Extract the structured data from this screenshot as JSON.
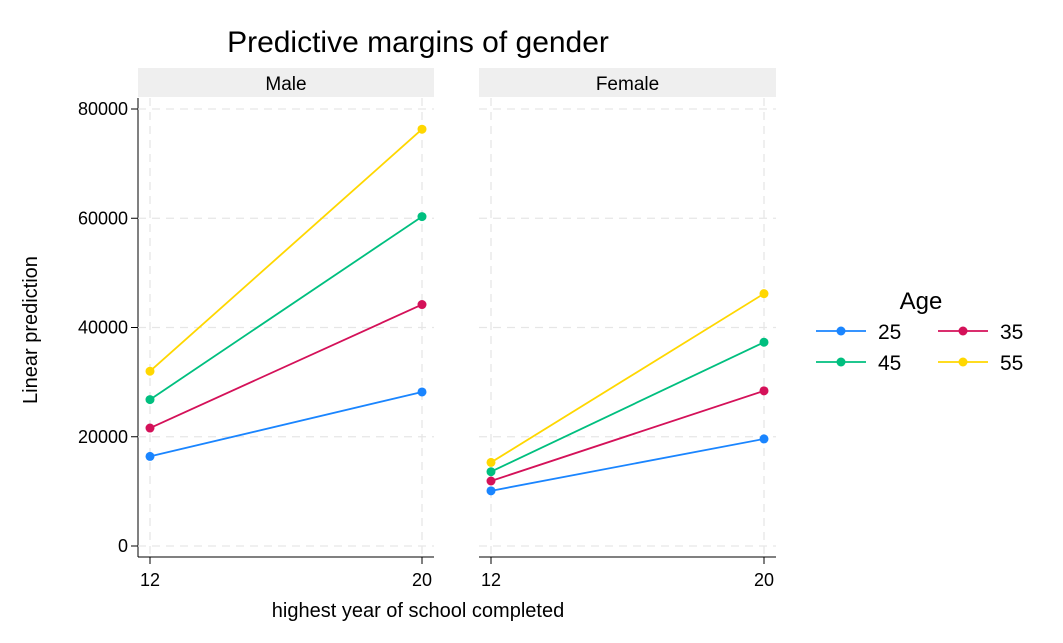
{
  "chart_data": {
    "type": "line",
    "title": "Predictive margins of gender",
    "xlabel": "highest year of school completed",
    "ylabel": "Linear prediction",
    "x": [
      12,
      20
    ],
    "x_ticks": [
      "12",
      "20"
    ],
    "ylim": [
      0,
      80000
    ],
    "y_ticks": [
      "0",
      "20000",
      "40000",
      "60000",
      "80000"
    ],
    "y_tick_values": [
      0,
      20000,
      40000,
      60000,
      80000
    ],
    "grid": true,
    "legend": {
      "title": "Age",
      "placement": "right",
      "entries": [
        {
          "label": "25",
          "color": "#1a85ff"
        },
        {
          "label": "35",
          "color": "#d41159"
        },
        {
          "label": "45",
          "color": "#00bf7f"
        },
        {
          "label": "55",
          "color": "#ffd700"
        }
      ]
    },
    "panels": [
      {
        "label": "Male",
        "series": [
          {
            "name": "25",
            "color": "#1a85ff",
            "values": [
              16400,
              28200
            ]
          },
          {
            "name": "35",
            "color": "#d41159",
            "values": [
              21600,
              44200
            ]
          },
          {
            "name": "45",
            "color": "#00bf7f",
            "values": [
              26800,
              60300
            ]
          },
          {
            "name": "55",
            "color": "#ffd700",
            "values": [
              32000,
              76300
            ]
          }
        ]
      },
      {
        "label": "Female",
        "series": [
          {
            "name": "25",
            "color": "#1a85ff",
            "values": [
              10100,
              19600
            ]
          },
          {
            "name": "35",
            "color": "#d41159",
            "values": [
              11900,
              28400
            ]
          },
          {
            "name": "45",
            "color": "#00bf7f",
            "values": [
              13600,
              37300
            ]
          },
          {
            "name": "55",
            "color": "#ffd700",
            "values": [
              15300,
              46200
            ]
          }
        ]
      }
    ]
  }
}
